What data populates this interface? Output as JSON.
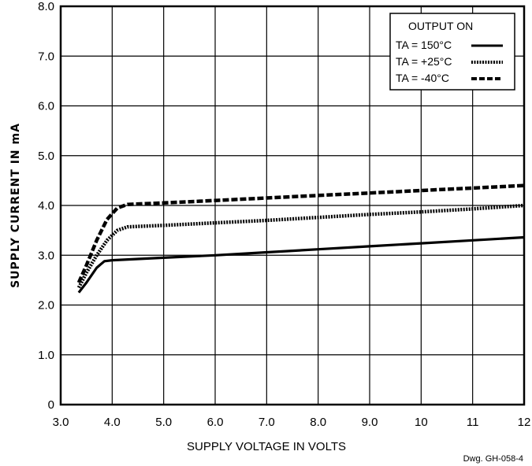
{
  "chart_data": {
    "type": "line",
    "title": "",
    "xlabel": "SUPPLY VOLTAGE IN VOLTS",
    "ylabel": "SUPPLY CURRENT IN mA",
    "xlim": [
      3.0,
      12.0
    ],
    "ylim": [
      0,
      8.0
    ],
    "x_ticks": [
      3.0,
      4.0,
      5.0,
      6.0,
      7.0,
      8.0,
      9.0,
      10,
      11,
      12
    ],
    "x_tick_labels": [
      "3.0",
      "4.0",
      "5.0",
      "6.0",
      "7.0",
      "8.0",
      "9.0",
      "10",
      "11",
      "12"
    ],
    "y_ticks": [
      0,
      1.0,
      2.0,
      3.0,
      4.0,
      5.0,
      6.0,
      7.0,
      8.0
    ],
    "y_tick_labels": [
      "0",
      "1.0",
      "2.0",
      "3.0",
      "4.0",
      "5.0",
      "6.0",
      "7.0",
      "8.0"
    ],
    "grid": true,
    "legend": {
      "title": "OUTPUT ON",
      "position": "top-right",
      "entries": [
        "TA = 150°C",
        "TA = +25°C",
        "TA = -40°C"
      ]
    },
    "series": [
      {
        "name": "TA = 150°C",
        "style": "solid",
        "x": [
          3.35,
          3.5,
          3.7,
          3.85,
          4.0,
          5.0,
          6.0,
          7.0,
          8.0,
          9.0,
          10.0,
          11.0,
          12.0
        ],
        "y": [
          2.25,
          2.45,
          2.75,
          2.88,
          2.9,
          2.95,
          3.0,
          3.06,
          3.12,
          3.18,
          3.24,
          3.3,
          3.36
        ]
      },
      {
        "name": "TA = +25°C",
        "style": "dotted",
        "x": [
          3.35,
          3.5,
          3.7,
          3.9,
          4.1,
          4.3,
          5.0,
          6.0,
          7.0,
          8.0,
          9.0,
          10.0,
          11.0,
          12.0
        ],
        "y": [
          2.35,
          2.65,
          3.0,
          3.3,
          3.5,
          3.57,
          3.6,
          3.65,
          3.7,
          3.76,
          3.82,
          3.87,
          3.93,
          4.0
        ]
      },
      {
        "name": "TA = -40°C",
        "style": "dashed",
        "x": [
          3.35,
          3.5,
          3.7,
          3.9,
          4.1,
          4.3,
          5.0,
          6.0,
          7.0,
          8.0,
          9.0,
          10.0,
          11.0,
          12.0
        ],
        "y": [
          2.45,
          2.8,
          3.3,
          3.72,
          3.95,
          4.02,
          4.05,
          4.1,
          4.15,
          4.2,
          4.25,
          4.3,
          4.35,
          4.4
        ]
      }
    ]
  },
  "footer_note": "Dwg. GH-058-4"
}
